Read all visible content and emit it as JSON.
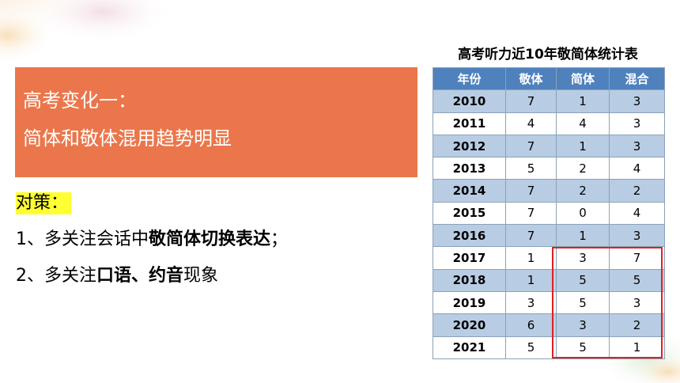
{
  "title_box": {
    "line1": "高考变化一：",
    "line2": "简体和敬体混用趋势明显"
  },
  "strategy": {
    "heading": "对策：",
    "item1": {
      "prefix": "1、多关注会话中",
      "bold": "敬简体切换表达",
      "suffix": "；"
    },
    "item2": {
      "prefix": "2、多关注",
      "bold1": "口语",
      "sep": "、",
      "bold2": "约音",
      "suffix": "现象"
    }
  },
  "table": {
    "title": "高考听力近10年敬简体统计表",
    "headers": [
      "年份",
      "敬体",
      "简体",
      "混合"
    ],
    "rows": [
      [
        "2010",
        "7",
        "1",
        "3"
      ],
      [
        "2011",
        "4",
        "4",
        "3"
      ],
      [
        "2012",
        "7",
        "1",
        "3"
      ],
      [
        "2013",
        "5",
        "2",
        "4"
      ],
      [
        "2014",
        "7",
        "2",
        "2"
      ],
      [
        "2015",
        "7",
        "0",
        "4"
      ],
      [
        "2016",
        "7",
        "1",
        "3"
      ],
      [
        "2017",
        "1",
        "3",
        "7"
      ],
      [
        "2018",
        "1",
        "5",
        "5"
      ],
      [
        "2019",
        "3",
        "5",
        "3"
      ],
      [
        "2020",
        "6",
        "3",
        "2"
      ],
      [
        "2021",
        "5",
        "5",
        "1"
      ]
    ],
    "highlighted_range": {
      "first_row": "2017",
      "last_row": "2021",
      "columns": [
        "简体",
        "混合"
      ]
    }
  },
  "colors": {
    "title_box": "#eb764b",
    "table_header": "#4f81bd",
    "row_band": "#b8cce4",
    "highlight_border": "#e02020",
    "heading_highlight": "#ffff33"
  }
}
